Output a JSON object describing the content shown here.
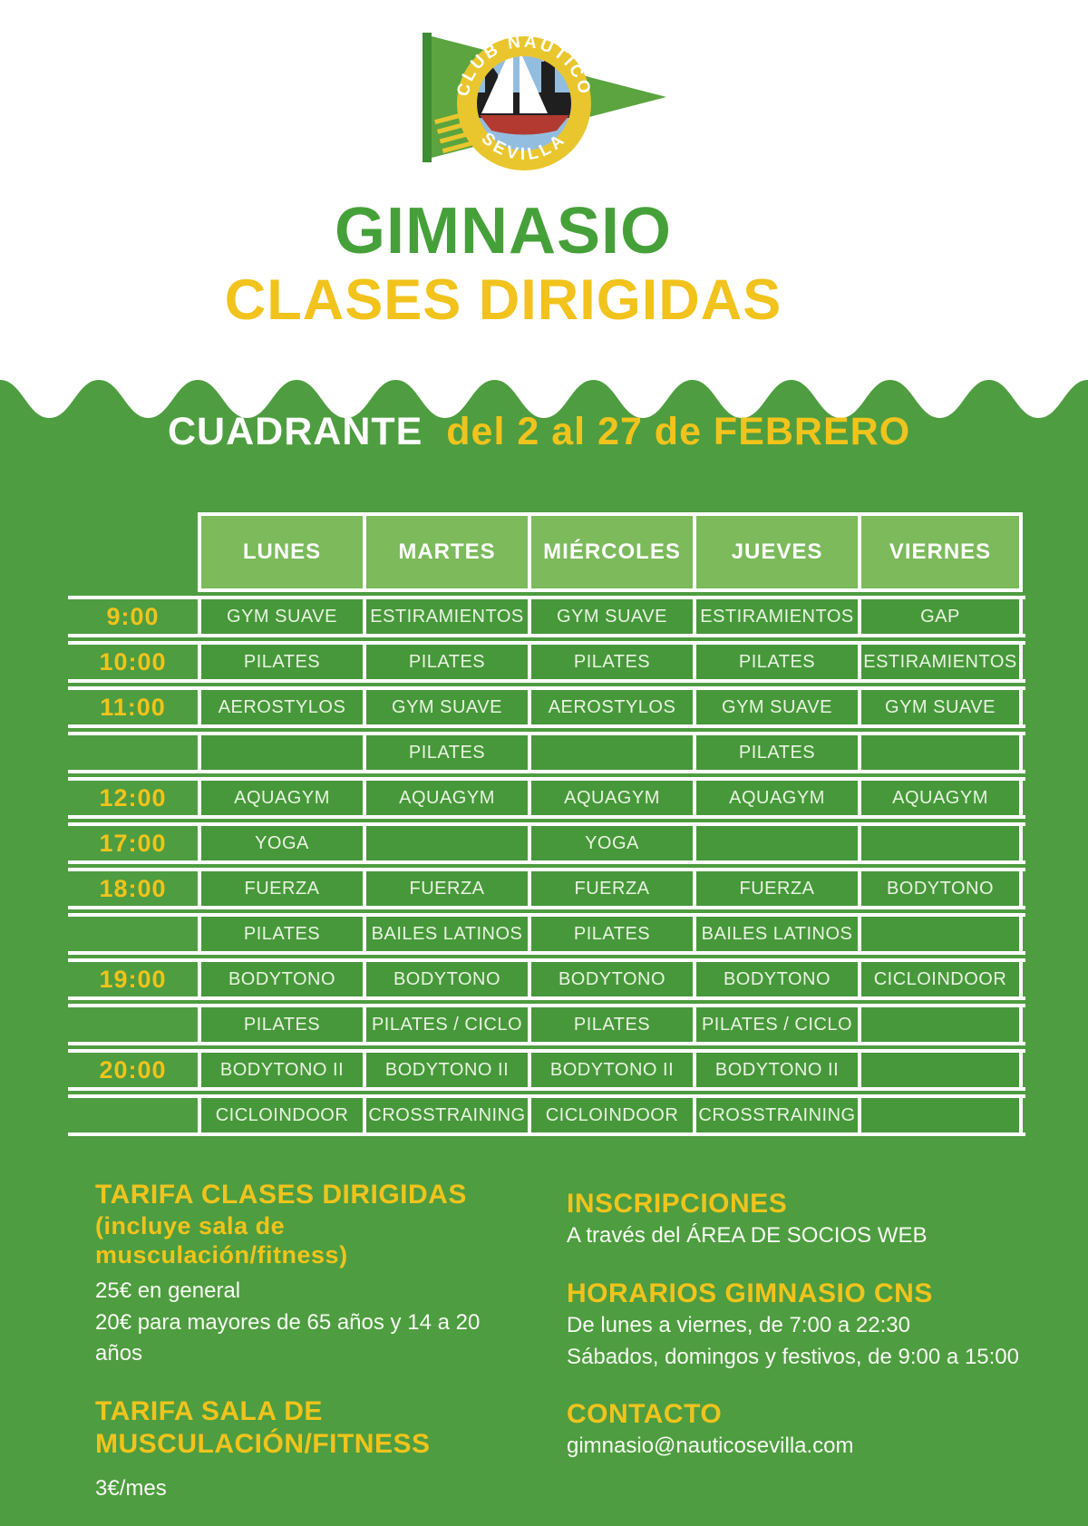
{
  "logo": {
    "club_name_top": "CLUB NÁUTICO",
    "club_name_bottom": "SEVILLA"
  },
  "title": {
    "line1": "GIMNASIO",
    "line2": "CLASES DIRIGIDAS"
  },
  "schedule": {
    "heading_white": "CUADRANTE",
    "heading_yellow": "del 2 al 27 de FEBRERO",
    "days": [
      "LUNES",
      "MARTES",
      "MIÉRCOLES",
      "JUEVES",
      "VIERNES"
    ],
    "rows": [
      {
        "time": "9:00",
        "cells": [
          "GYM SUAVE",
          "ESTIRAMIENTOS",
          "GYM SUAVE",
          "ESTIRAMIENTOS",
          "GAP"
        ]
      },
      {
        "time": "10:00",
        "cells": [
          "PILATES",
          "PILATES",
          "PILATES",
          "PILATES",
          "ESTIRAMIENTOS"
        ]
      },
      {
        "time": "11:00",
        "cells": [
          "AEROSTYLOS",
          "GYM SUAVE",
          "AEROSTYLOS",
          "GYM SUAVE",
          "GYM SUAVE"
        ]
      },
      {
        "time": "",
        "cells": [
          "",
          "PILATES",
          "",
          "PILATES",
          ""
        ]
      },
      {
        "time": "12:00",
        "cells": [
          "AQUAGYM",
          "AQUAGYM",
          "AQUAGYM",
          "AQUAGYM",
          "AQUAGYM"
        ]
      },
      {
        "time": "17:00",
        "cells": [
          "YOGA",
          "",
          "YOGA",
          "",
          ""
        ]
      },
      {
        "time": "18:00",
        "cells": [
          "FUERZA",
          "FUERZA",
          "FUERZA",
          "FUERZA",
          "BODYTONO"
        ]
      },
      {
        "time": "",
        "cells": [
          "PILATES",
          "BAILES LATINOS",
          "PILATES",
          "BAILES LATINOS",
          ""
        ]
      },
      {
        "time": "19:00",
        "cells": [
          "BODYTONO",
          "BODYTONO",
          "BODYTONO",
          "BODYTONO",
          "CICLOINDOOR"
        ]
      },
      {
        "time": "",
        "cells": [
          "PILATES",
          "PILATES / CICLO",
          "PILATES",
          "PILATES / CICLO",
          ""
        ]
      },
      {
        "time": "20:00",
        "cells": [
          "BODYTONO II",
          "BODYTONO II",
          "BODYTONO II",
          "BODYTONO II",
          ""
        ]
      },
      {
        "time": "",
        "cells": [
          "CICLOINDOOR",
          "CROSSTRAINING",
          "CICLOINDOOR",
          "CROSSTRAINING",
          ""
        ]
      }
    ]
  },
  "pricing": {
    "heading1": "TARIFA CLASES DIRIGIDAS",
    "subheading1": "(incluye sala de musculación/fitness)",
    "line1": "25€ en general",
    "line2": "20€ para mayores de 65 años y 14 a 20 años",
    "heading2_line1": "TARIFA SALA DE",
    "heading2_line2": "MUSCULACIÓN/FITNESS",
    "line3": "3€/mes"
  },
  "inscriptions": {
    "heading": "INSCRIPCIONES",
    "line": "A través del ÁREA DE SOCIOS WEB"
  },
  "hours": {
    "heading": "HORARIOS GIMNASIO CNS",
    "line1": "De lunes a viernes, de 7:00 a 22:30",
    "line2": "Sábados, domingos y festivos, de 9:00 a 15:00"
  },
  "contact": {
    "heading": "CONTACTO",
    "email": "gimnasio@nauticosevilla.com"
  },
  "colors": {
    "green_background": "#4e9d40",
    "green_cell": "#47983a",
    "green_header_cell": "#7cba5c",
    "green_title": "#46a039",
    "yellow_accent": "#f1c31c",
    "badge_yellow": "#eac62e",
    "badge_blue": "#93bddf",
    "hull_red": "#b23a31"
  }
}
